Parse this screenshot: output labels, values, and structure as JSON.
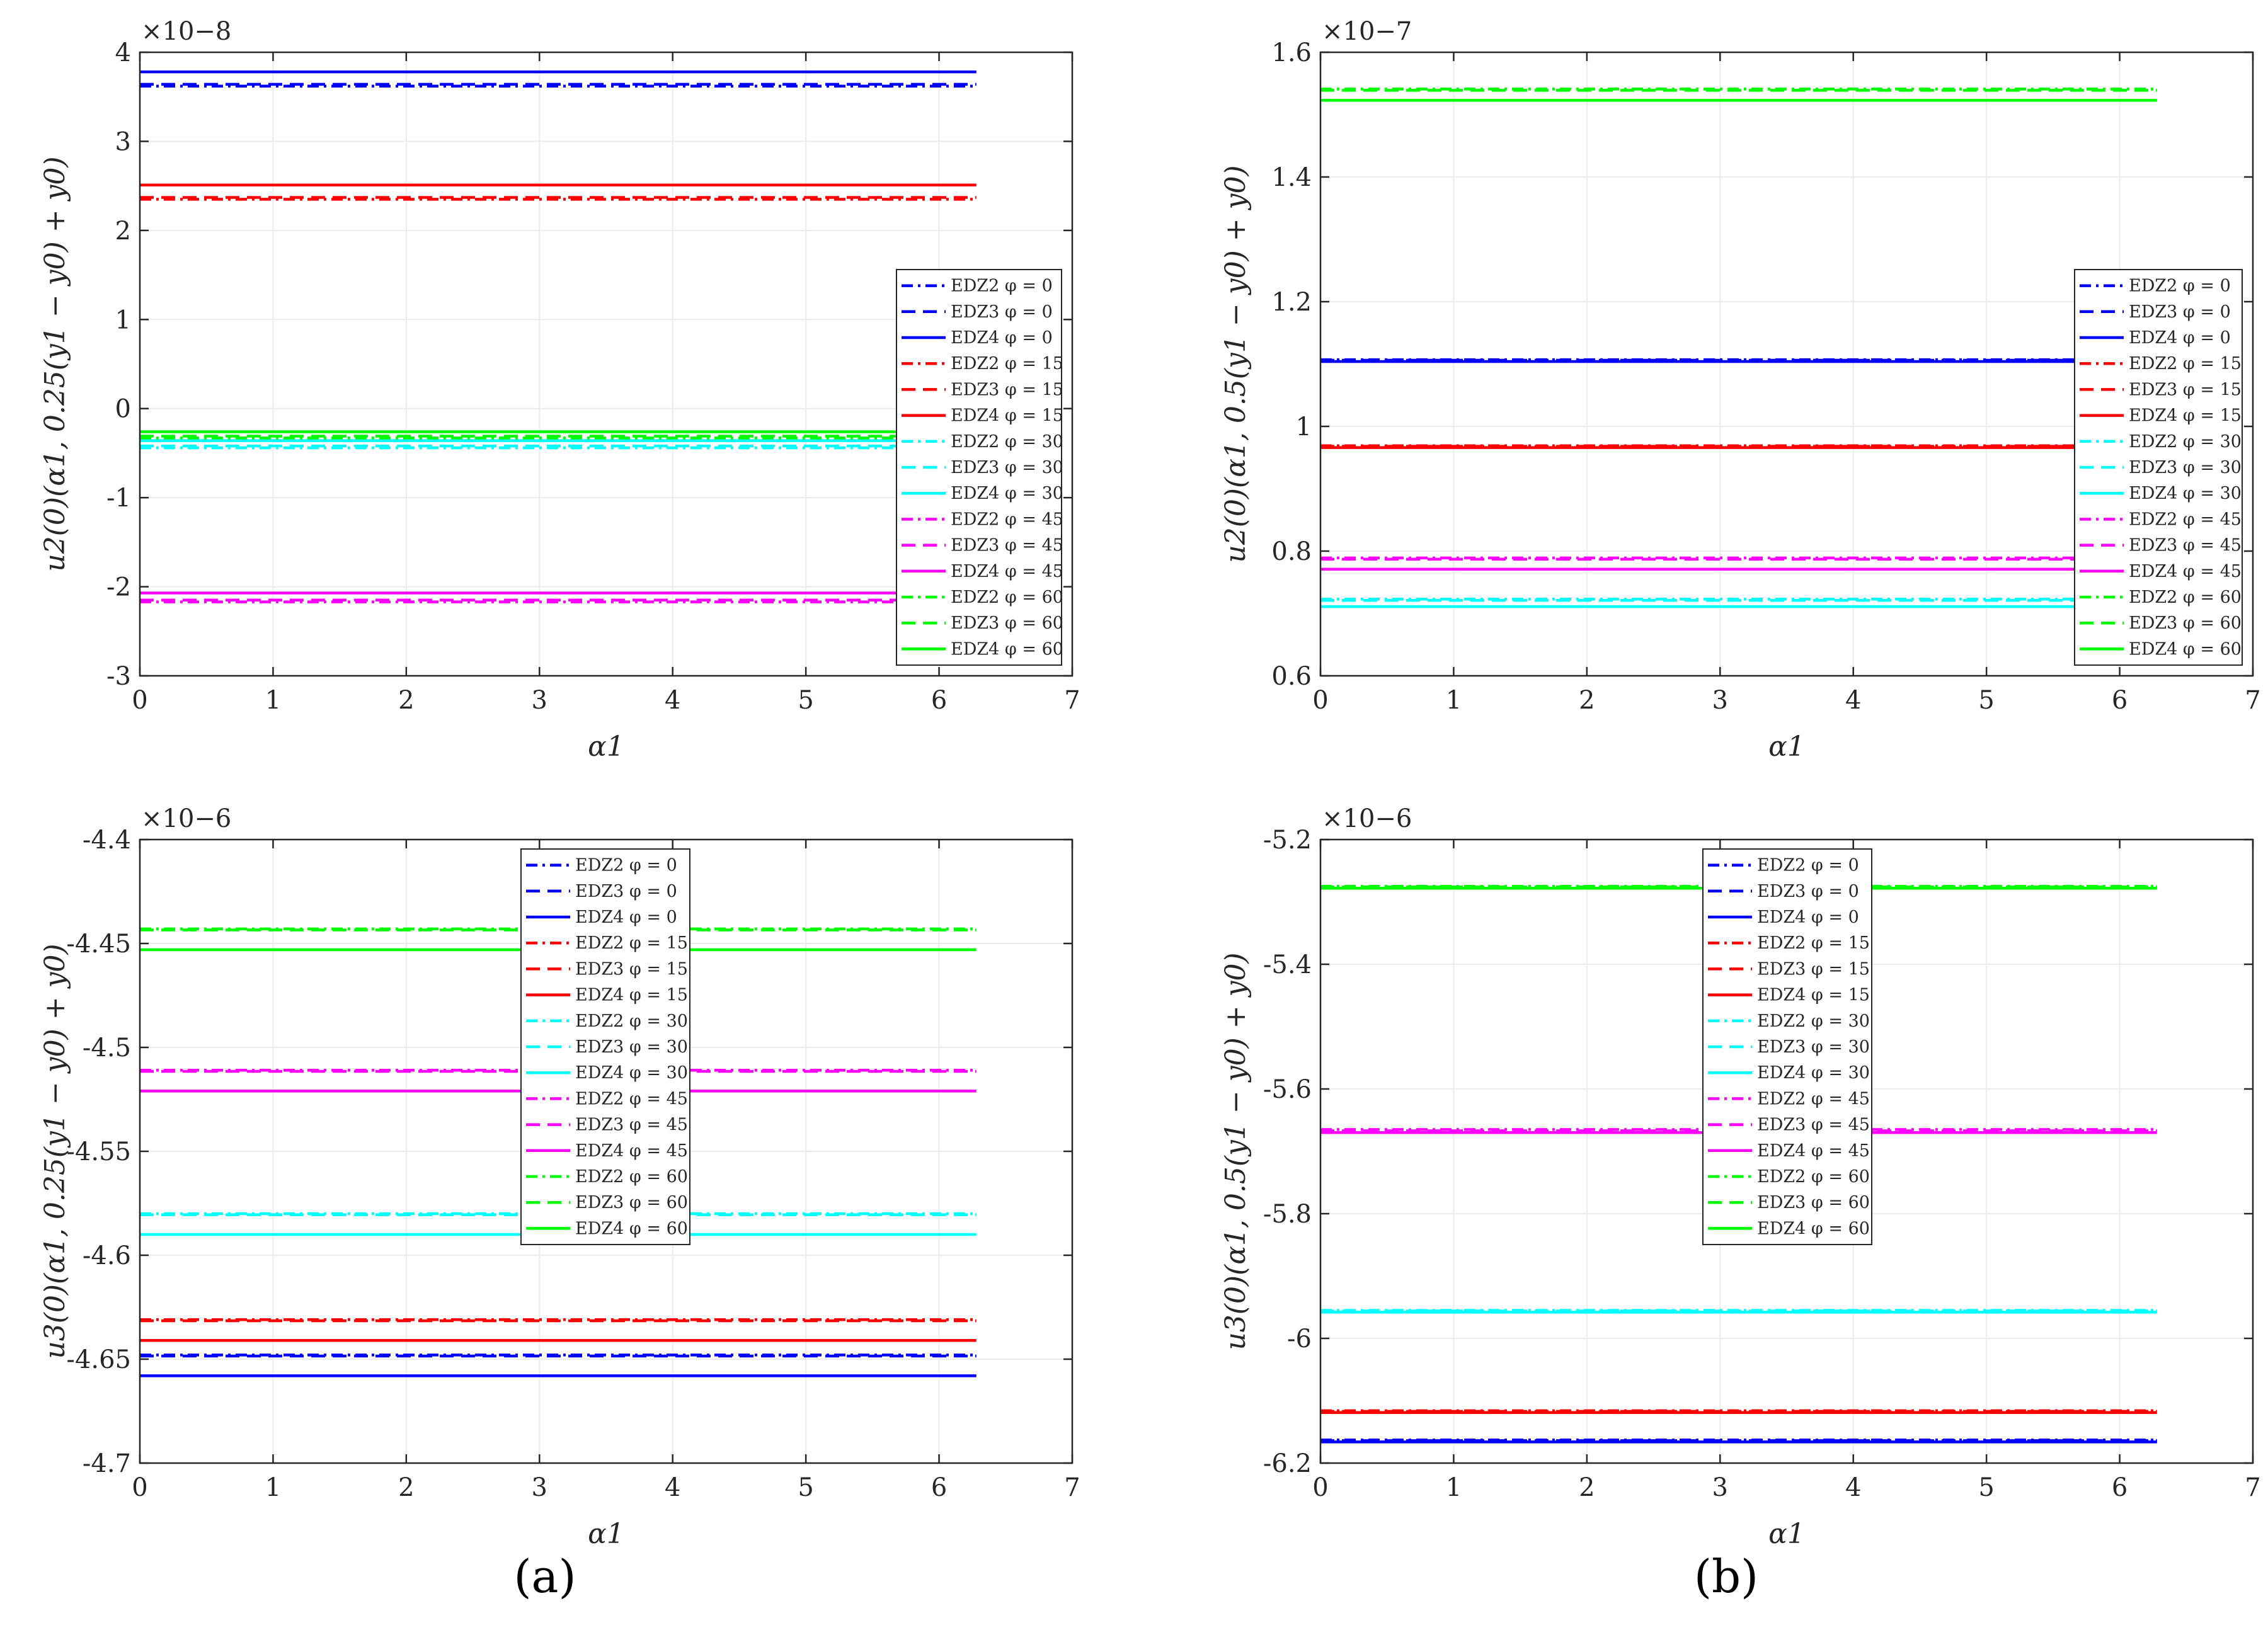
{
  "figure": {
    "panel_labels": [
      "(a)",
      "(b)"
    ]
  },
  "chart_data": [
    {
      "type": "line",
      "panel": "top-left",
      "xlabel": "α1",
      "ylabel": "u2(0)(α1, 0.25(y1 − y0) + y0)",
      "xlim": [
        0,
        7
      ],
      "ylim": [
        -3,
        4
      ],
      "xticks": [
        "0",
        "1",
        "2",
        "3",
        "4",
        "5",
        "6",
        "7"
      ],
      "yticks": [
        "-3",
        "-2",
        "-1",
        "0",
        "1",
        "2",
        "3",
        "4"
      ],
      "exponent": "×10−8",
      "grid": true,
      "legend_placement": "middle-right",
      "x": [
        0,
        6.28
      ],
      "series": [
        {
          "name": "EDZ2 φ = 0",
          "color": "#0000ff",
          "style": "dashdot",
          "value": 3.62
        },
        {
          "name": "EDZ3 φ = 0",
          "color": "#0000ff",
          "style": "dashed",
          "value": 3.64
        },
        {
          "name": "EDZ4 φ = 0",
          "color": "#0000ff",
          "style": "solid",
          "value": 3.78
        },
        {
          "name": "EDZ2 φ = 15",
          "color": "#ff0000",
          "style": "dashdot",
          "value": 2.35
        },
        {
          "name": "EDZ3 φ = 15",
          "color": "#ff0000",
          "style": "dashed",
          "value": 2.37
        },
        {
          "name": "EDZ4 φ = 15",
          "color": "#ff0000",
          "style": "solid",
          "value": 2.51
        },
        {
          "name": "EDZ2 φ = 30",
          "color": "#00ffff",
          "style": "dashdot",
          "value": -0.44
        },
        {
          "name": "EDZ3 φ = 30",
          "color": "#00ffff",
          "style": "dashed",
          "value": -0.42
        },
        {
          "name": "EDZ4 φ = 30",
          "color": "#00ffff",
          "style": "solid",
          "value": -0.36
        },
        {
          "name": "EDZ2 φ = 45",
          "color": "#ff00ff",
          "style": "dashdot",
          "value": -2.17
        },
        {
          "name": "EDZ3 φ = 45",
          "color": "#ff00ff",
          "style": "dashed",
          "value": -2.15
        },
        {
          "name": "EDZ4 φ = 45",
          "color": "#ff00ff",
          "style": "solid",
          "value": -2.07
        },
        {
          "name": "EDZ2 φ = 60",
          "color": "#00ff00",
          "style": "dashdot",
          "value": -0.33
        },
        {
          "name": "EDZ3 φ = 60",
          "color": "#00ff00",
          "style": "dashed",
          "value": -0.31
        },
        {
          "name": "EDZ4 φ = 60",
          "color": "#00ff00",
          "style": "solid",
          "value": -0.26
        }
      ]
    },
    {
      "type": "line",
      "panel": "top-right",
      "xlabel": "α1",
      "ylabel": "u2(0)(α1, 0.5(y1 − y0) + y0)",
      "xlim": [
        0,
        7
      ],
      "ylim": [
        0.6,
        1.6
      ],
      "xticks": [
        "0",
        "1",
        "2",
        "3",
        "4",
        "5",
        "6",
        "7"
      ],
      "yticks": [
        "0.6",
        "0.8",
        "1",
        "1.2",
        "1.4",
        "1.6"
      ],
      "exponent": "×10−7",
      "grid": true,
      "legend_placement": "right",
      "x": [
        0,
        6.28
      ],
      "series": [
        {
          "name": "EDZ2 φ = 0",
          "color": "#0000ff",
          "style": "dashdot",
          "value": 1.107
        },
        {
          "name": "EDZ3 φ = 0",
          "color": "#0000ff",
          "style": "dashed",
          "value": 1.106
        },
        {
          "name": "EDZ4 φ = 0",
          "color": "#0000ff",
          "style": "solid",
          "value": 1.104
        },
        {
          "name": "EDZ2 φ = 15",
          "color": "#ff0000",
          "style": "dashdot",
          "value": 0.969
        },
        {
          "name": "EDZ3 φ = 15",
          "color": "#ff0000",
          "style": "dashed",
          "value": 0.968
        },
        {
          "name": "EDZ4 φ = 15",
          "color": "#ff0000",
          "style": "solid",
          "value": 0.966
        },
        {
          "name": "EDZ2 φ = 30",
          "color": "#00ffff",
          "style": "dashdot",
          "value": 0.723
        },
        {
          "name": "EDZ3 φ = 30",
          "color": "#00ffff",
          "style": "dashed",
          "value": 0.721
        },
        {
          "name": "EDZ4 φ = 30",
          "color": "#00ffff",
          "style": "solid",
          "value": 0.711
        },
        {
          "name": "EDZ2 φ = 45",
          "color": "#ff00ff",
          "style": "dashdot",
          "value": 0.789
        },
        {
          "name": "EDZ3 φ = 45",
          "color": "#ff00ff",
          "style": "dashed",
          "value": 0.787
        },
        {
          "name": "EDZ4 φ = 45",
          "color": "#ff00ff",
          "style": "solid",
          "value": 0.771
        },
        {
          "name": "EDZ2 φ = 60",
          "color": "#00ff00",
          "style": "dashdot",
          "value": 1.541
        },
        {
          "name": "EDZ3 φ = 60",
          "color": "#00ff00",
          "style": "dashed",
          "value": 1.539
        },
        {
          "name": "EDZ4 φ = 60",
          "color": "#00ff00",
          "style": "solid",
          "value": 1.523
        }
      ]
    },
    {
      "type": "line",
      "panel": "bottom-left",
      "xlabel": "α1",
      "ylabel": "u3(0)(α1, 0.25(y1 − y0) + y0)",
      "xlim": [
        0,
        7
      ],
      "ylim": [
        -4.7,
        -4.4
      ],
      "xticks": [
        "0",
        "1",
        "2",
        "3",
        "4",
        "5",
        "6",
        "7"
      ],
      "yticks": [
        "-4.7",
        "-4.65",
        "-4.6",
        "-4.55",
        "-4.5",
        "-4.45",
        "-4.4"
      ],
      "exponent": "×10−6",
      "grid": true,
      "legend_placement": "top-center",
      "x": [
        0,
        6.28
      ],
      "series": [
        {
          "name": "EDZ2 φ = 0",
          "color": "#0000ff",
          "style": "dashdot",
          "value": -4.648
        },
        {
          "name": "EDZ3 φ = 0",
          "color": "#0000ff",
          "style": "dashed",
          "value": -4.6485
        },
        {
          "name": "EDZ4 φ = 0",
          "color": "#0000ff",
          "style": "solid",
          "value": -4.658
        },
        {
          "name": "EDZ2 φ = 15",
          "color": "#ff0000",
          "style": "dashdot",
          "value": -4.631
        },
        {
          "name": "EDZ3 φ = 15",
          "color": "#ff0000",
          "style": "dashed",
          "value": -4.6315
        },
        {
          "name": "EDZ4 φ = 15",
          "color": "#ff0000",
          "style": "solid",
          "value": -4.641
        },
        {
          "name": "EDZ2 φ = 30",
          "color": "#00ffff",
          "style": "dashdot",
          "value": -4.58
        },
        {
          "name": "EDZ3 φ = 30",
          "color": "#00ffff",
          "style": "dashed",
          "value": -4.5805
        },
        {
          "name": "EDZ4 φ = 30",
          "color": "#00ffff",
          "style": "solid",
          "value": -4.59
        },
        {
          "name": "EDZ2 φ = 45",
          "color": "#ff00ff",
          "style": "dashdot",
          "value": -4.511
        },
        {
          "name": "EDZ3 φ = 45",
          "color": "#ff00ff",
          "style": "dashed",
          "value": -4.5115
        },
        {
          "name": "EDZ4 φ = 45",
          "color": "#ff00ff",
          "style": "solid",
          "value": -4.521
        },
        {
          "name": "EDZ2 φ = 60",
          "color": "#00ff00",
          "style": "dashdot",
          "value": -4.443
        },
        {
          "name": "EDZ3 φ = 60",
          "color": "#00ff00",
          "style": "dashed",
          "value": -4.4435
        },
        {
          "name": "EDZ4 φ = 60",
          "color": "#00ff00",
          "style": "solid",
          "value": -4.453
        }
      ]
    },
    {
      "type": "line",
      "panel": "bottom-right",
      "xlabel": "α1",
      "ylabel": "u3(0)(α1, 0.5(y1 − y0) + y0)",
      "xlim": [
        0,
        7
      ],
      "ylim": [
        -6.2,
        -5.2
      ],
      "xticks": [
        "0",
        "1",
        "2",
        "3",
        "4",
        "5",
        "6",
        "7"
      ],
      "yticks": [
        "-6.2",
        "-6",
        "-5.8",
        "-5.6",
        "-5.4",
        "-5.2"
      ],
      "exponent": "×10−6",
      "grid": true,
      "legend_placement": "top-center",
      "x": [
        0,
        6.28
      ],
      "series": [
        {
          "name": "EDZ2 φ = 0",
          "color": "#0000ff",
          "style": "dashdot",
          "value": -6.163
        },
        {
          "name": "EDZ3 φ = 0",
          "color": "#0000ff",
          "style": "dashed",
          "value": -6.164
        },
        {
          "name": "EDZ4 φ = 0",
          "color": "#0000ff",
          "style": "solid",
          "value": -6.166
        },
        {
          "name": "EDZ2 φ = 15",
          "color": "#ff0000",
          "style": "dashdot",
          "value": -6.116
        },
        {
          "name": "EDZ3 φ = 15",
          "color": "#ff0000",
          "style": "dashed",
          "value": -6.117
        },
        {
          "name": "EDZ4 φ = 15",
          "color": "#ff0000",
          "style": "solid",
          "value": -6.119
        },
        {
          "name": "EDZ2 φ = 30",
          "color": "#00ffff",
          "style": "dashdot",
          "value": -5.955
        },
        {
          "name": "EDZ3 φ = 30",
          "color": "#00ffff",
          "style": "dashed",
          "value": -5.956
        },
        {
          "name": "EDZ4 φ = 30",
          "color": "#00ffff",
          "style": "solid",
          "value": -5.958
        },
        {
          "name": "EDZ2 φ = 45",
          "color": "#ff00ff",
          "style": "dashdot",
          "value": -5.665
        },
        {
          "name": "EDZ3 φ = 45",
          "color": "#ff00ff",
          "style": "dashed",
          "value": -5.667
        },
        {
          "name": "EDZ4 φ = 45",
          "color": "#ff00ff",
          "style": "solid",
          "value": -5.67
        },
        {
          "name": "EDZ2 φ = 60",
          "color": "#00ff00",
          "style": "dashdot",
          "value": -5.275
        },
        {
          "name": "EDZ3 φ = 60",
          "color": "#00ff00",
          "style": "dashed",
          "value": -5.276
        },
        {
          "name": "EDZ4 φ = 60",
          "color": "#00ff00",
          "style": "solid",
          "value": -5.278
        }
      ]
    }
  ]
}
